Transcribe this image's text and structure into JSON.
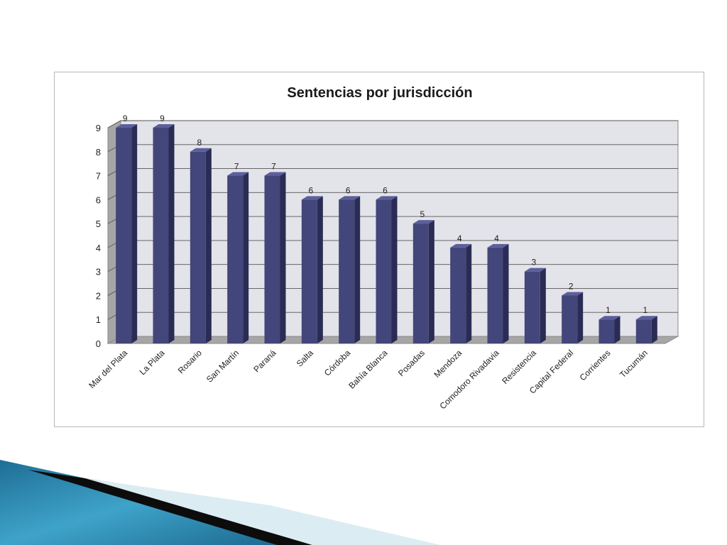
{
  "chart_data": {
    "type": "bar",
    "title": "Sentencias por jurisdicción",
    "categories": [
      "Mar del Plata",
      "La Plata",
      "Rosario",
      "San Martín",
      "Paraná",
      "Salta",
      "Córdoba",
      "Bahía Blanca",
      "Posadas",
      "Mendoza",
      "Comodoro Rivadavia",
      "Resistencia",
      "Capital Federal",
      "Corrientes",
      "Tucumán"
    ],
    "values": [
      9,
      9,
      8,
      7,
      7,
      6,
      6,
      6,
      5,
      4,
      4,
      3,
      2,
      1,
      1
    ],
    "xlabel": "",
    "ylabel": "",
    "ylim": [
      0,
      9
    ],
    "yticks": [
      "0",
      "1",
      "2",
      "3",
      "4",
      "5",
      "6",
      "7",
      "8",
      "9"
    ],
    "grid": true,
    "legend": "none",
    "bar_color": "#43467a",
    "bar_side_color": "#2a2c55",
    "bar_top_color": "#5b5f9a",
    "wall_color": "#e3e3ea",
    "floor_color": "#a6a6a6"
  }
}
